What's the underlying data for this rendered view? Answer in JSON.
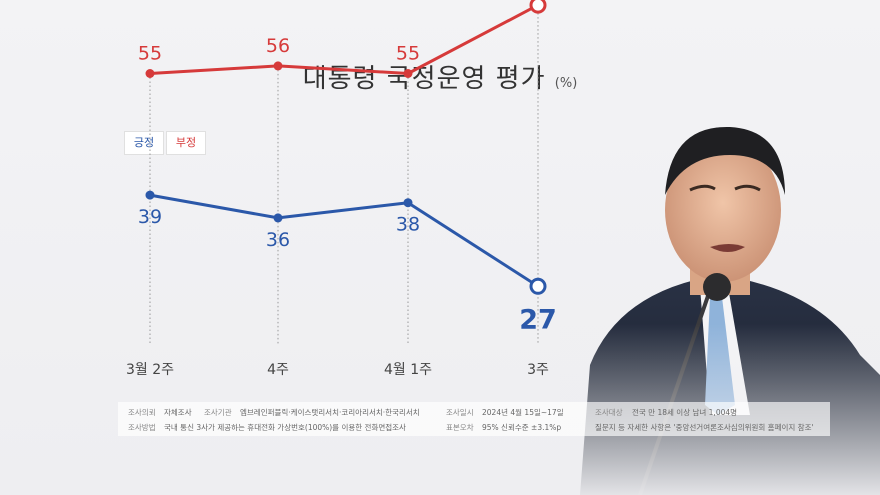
{
  "title": "대통령 국정운영 평가",
  "unit": "(%)",
  "legend": {
    "positive": "긍정",
    "negative": "부정"
  },
  "chart_data": {
    "type": "line",
    "categories": [
      "3월 2주",
      "4주",
      "4월 1주",
      "3주"
    ],
    "series": [
      {
        "name": "부정",
        "values": [
          55,
          56,
          55,
          64
        ],
        "color": "#d63a3a"
      },
      {
        "name": "긍정",
        "values": [
          39,
          36,
          38,
          27
        ],
        "color": "#2b58a9"
      }
    ],
    "legend_position": "top-left",
    "grid": false
  },
  "info": {
    "row1": [
      {
        "k": "조사의뢰",
        "v": "자체조사"
      },
      {
        "k": "조사기관",
        "v": "엠브레인퍼블릭·케이스탯리서치·코리아리서치·한국리서치"
      },
      {
        "k": "조사일시",
        "v": "2024년 4월 15일~17일"
      },
      {
        "k": "조사대상",
        "v": "전국 만 18세 이상 남녀 1,004명"
      }
    ],
    "row2": [
      {
        "k": "조사방법",
        "v": "국내 통신 3사가 제공하는 휴대전화 가상번호(100%)를 이용한 전화면접조사"
      },
      {
        "k": "표본오차",
        "v": "95% 신뢰수준 ±3.1%p"
      },
      {
        "k": "",
        "v": "질문지 등 자세한 사항은 '중앙선거여론조사심의위원회 홈페이지 참조'"
      }
    ]
  }
}
